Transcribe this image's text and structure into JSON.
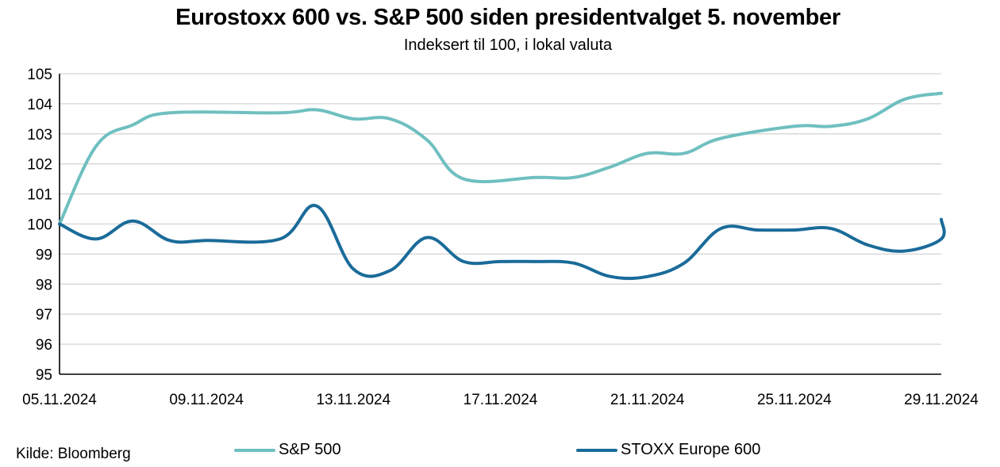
{
  "chart_data": {
    "type": "line",
    "title": "Eurostoxx 600 vs. S&P 500 siden presidentvalget 5. november",
    "subtitle": "Indeksert til 100, i lokal valuta",
    "ylim": [
      95,
      105
    ],
    "yticks": [
      95,
      96,
      97,
      98,
      99,
      100,
      101,
      102,
      103,
      104,
      105
    ],
    "xlim": [
      "05.11.2024",
      "29.11.2024"
    ],
    "xtick_labels": [
      "05.11.2024",
      "09.11.2024",
      "13.11.2024",
      "17.11.2024",
      "21.11.2024",
      "25.11.2024",
      "29.11.2024"
    ],
    "grid": "horizontal",
    "legend": "bottom",
    "series": [
      {
        "name": "S&P 500",
        "color": "#6fbfc0",
        "points": [
          [
            "05.11.2024",
            100.0
          ],
          [
            "06.11.2024",
            102.6
          ],
          [
            "07.11.2024",
            103.3
          ],
          [
            "08.11.2024",
            103.7
          ],
          [
            "11.11.2024",
            103.7
          ],
          [
            "12.11.2024",
            103.8
          ],
          [
            "13.11.2024",
            103.5
          ],
          [
            "14.11.2024",
            103.5
          ],
          [
            "15.11.2024",
            102.8
          ],
          [
            "16.11.2024",
            101.5
          ],
          [
            "18.11.2024",
            101.55
          ],
          [
            "19.11.2024",
            101.55
          ],
          [
            "20.11.2024",
            101.9
          ],
          [
            "21.11.2024",
            102.35
          ],
          [
            "22.11.2024",
            102.35
          ],
          [
            "23.11.2024",
            102.85
          ],
          [
            "25.11.2024",
            103.25
          ],
          [
            "26.11.2024",
            103.25
          ],
          [
            "27.11.2024",
            103.5
          ],
          [
            "28.11.2024",
            104.15
          ],
          [
            "29.11.2024",
            104.35
          ]
        ]
      },
      {
        "name": "STOXX Europe 600",
        "color": "#1a6b99",
        "points": [
          [
            "05.11.2024",
            100.0
          ],
          [
            "06.11.2024",
            99.5
          ],
          [
            "07.11.2024",
            100.1
          ],
          [
            "08.11.2024",
            99.45
          ],
          [
            "09.11.2024",
            99.45
          ],
          [
            "11.11.2024",
            99.5
          ],
          [
            "12.11.2024",
            100.6
          ],
          [
            "13.11.2024",
            98.5
          ],
          [
            "14.11.2024",
            98.45
          ],
          [
            "15.11.2024",
            99.55
          ],
          [
            "16.11.2024",
            98.75
          ],
          [
            "17.11.2024",
            98.75
          ],
          [
            "18.11.2024",
            98.75
          ],
          [
            "19.11.2024",
            98.7
          ],
          [
            "20.11.2024",
            98.25
          ],
          [
            "21.11.2024",
            98.25
          ],
          [
            "22.11.2024",
            98.7
          ],
          [
            "23.11.2024",
            99.85
          ],
          [
            "24.11.2024",
            99.8
          ],
          [
            "25.11.2024",
            99.8
          ],
          [
            "26.11.2024",
            99.85
          ],
          [
            "27.11.2024",
            99.3
          ],
          [
            "28.11.2024",
            99.1
          ],
          [
            "29.11.2024",
            99.5
          ],
          [
            "30.11.2024",
            100.15
          ]
        ]
      }
    ]
  },
  "footer": {
    "source": "Kilde: Bloomberg"
  }
}
